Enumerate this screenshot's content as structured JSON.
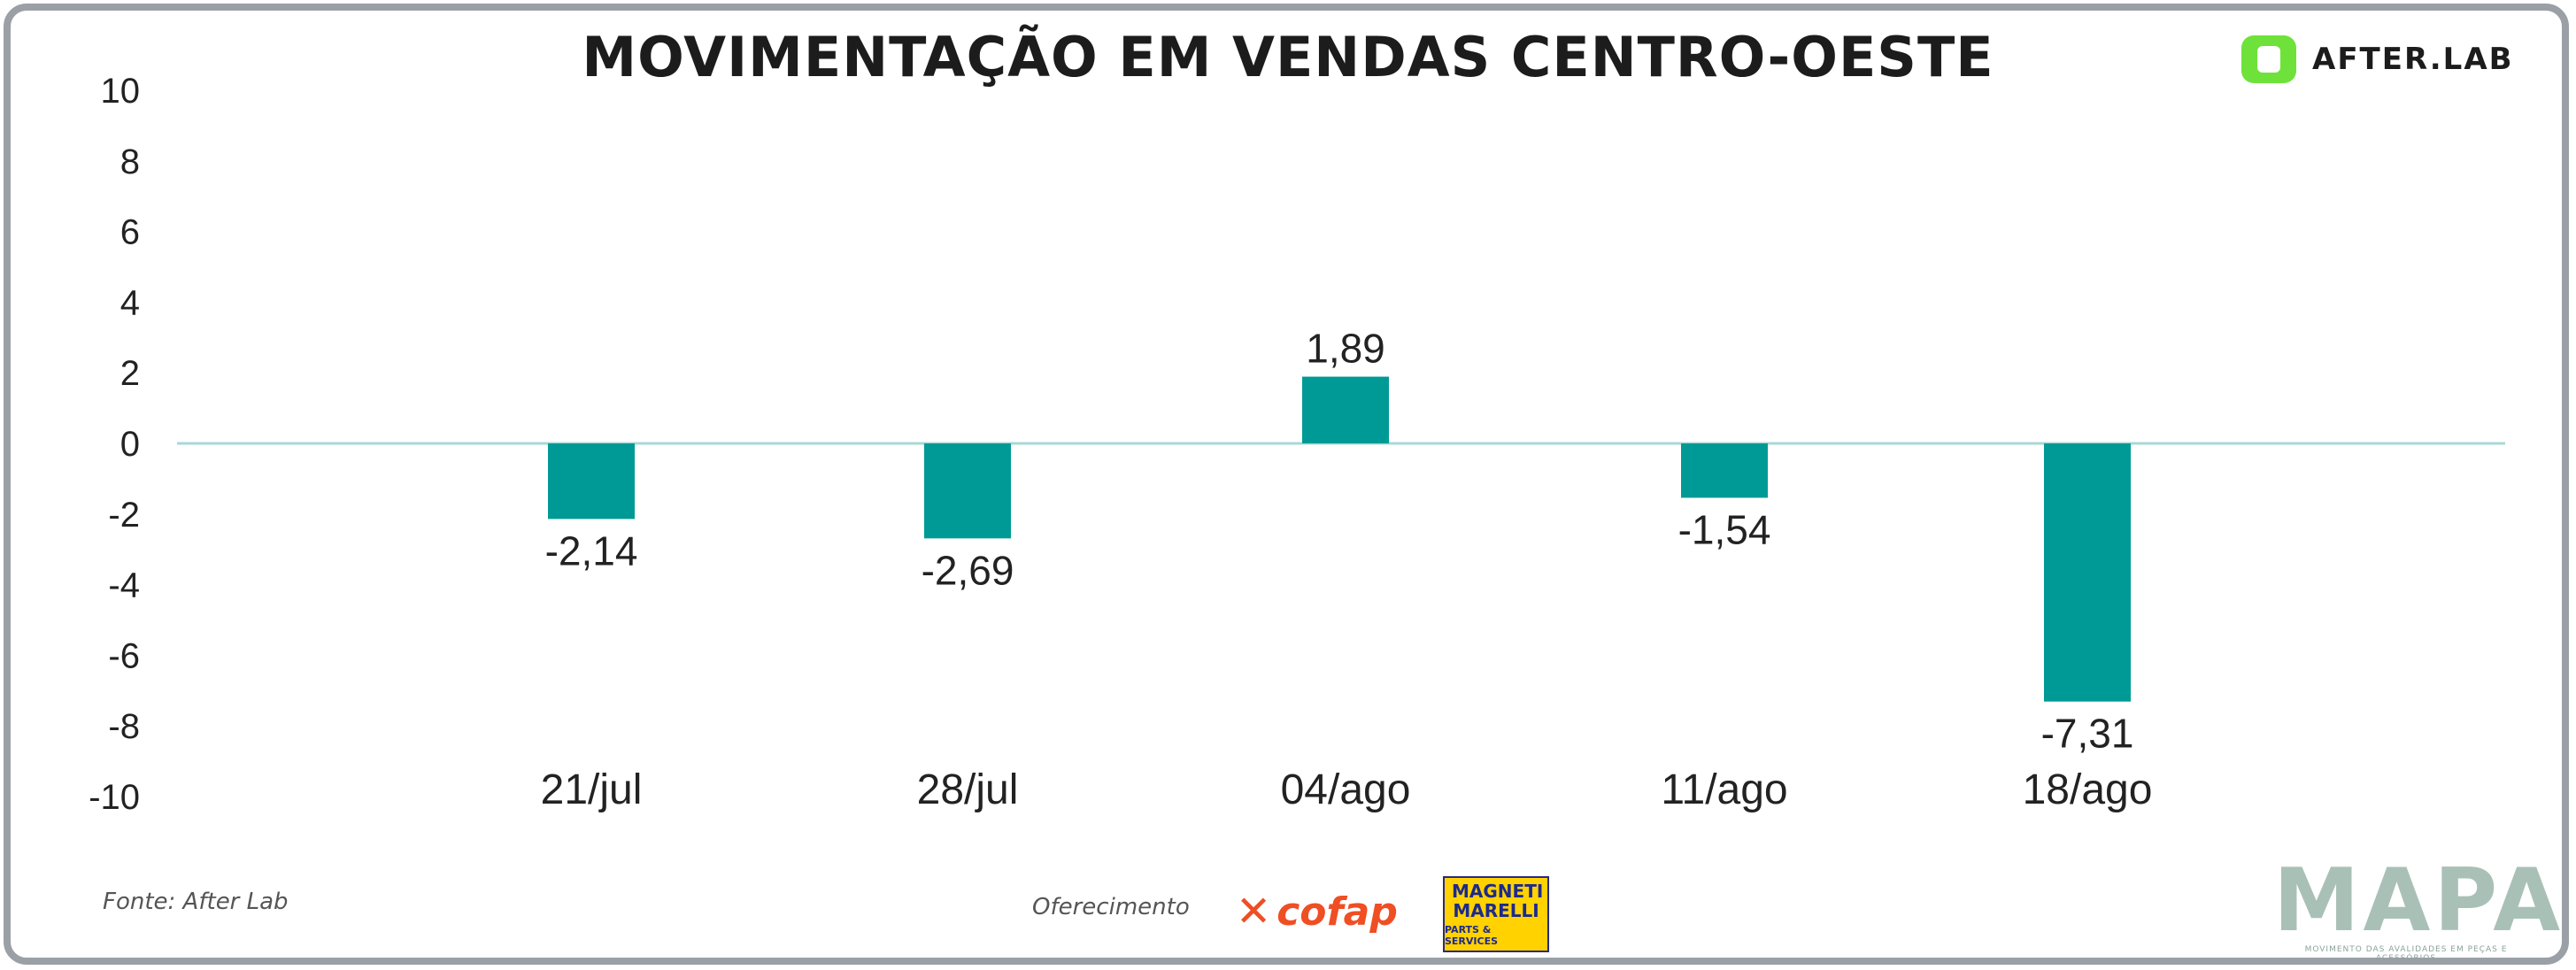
{
  "header": {
    "title": "MOVIMENTAÇÃO EM VENDAS CENTRO-OESTE",
    "brand": "AFTER.LAB"
  },
  "colors": {
    "bar": "#009a96",
    "zero_line": "#a8d8d5",
    "brand_green": "#6ee23a",
    "cofap_orange": "#f04e23",
    "magneti_yellow": "#ffd200"
  },
  "chart_data": {
    "type": "bar",
    "title": "MOVIMENTAÇÃO EM VENDAS CENTRO-OESTE",
    "xlabel": "",
    "ylabel": "",
    "categories": [
      "21/jul",
      "28/jul",
      "04/ago",
      "11/ago",
      "18/ago"
    ],
    "values": [
      -2.14,
      -2.69,
      1.89,
      -1.54,
      -7.31
    ],
    "value_labels": [
      "-2,14",
      "-2,69",
      "1,89",
      "-1,54",
      "-7,31"
    ],
    "ylim": [
      -10,
      10
    ],
    "yticks": [
      10,
      8,
      6,
      4,
      2,
      0,
      -2,
      -4,
      -6,
      -8,
      -10
    ],
    "grid": false,
    "legend": "none"
  },
  "footer": {
    "source": "Fonte: After Lab",
    "sponsor_label": "Oferecimento",
    "sponsor_1": "cofap",
    "sponsor_2_name": "MAGNETI MARELLI",
    "sponsor_2_sub": "PARTS & SERVICES",
    "publisher": "MAPA",
    "publisher_tagline": "MOVIMENTO DAS AVALIDADES EM PEÇAS E ACESSÓRIOS"
  }
}
